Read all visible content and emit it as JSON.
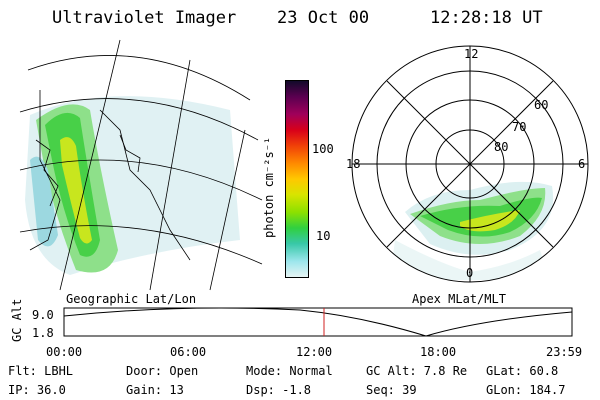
{
  "header": {
    "title": "Ultraviolet Imager",
    "date": "23 Oct 00",
    "time": "12:28:18 UT"
  },
  "colorbar": {
    "unit_label": "photon cm⁻²s⁻¹",
    "ticks": [
      "100",
      "10"
    ],
    "colors": [
      "#120a2a",
      "#5a0050",
      "#a0005a",
      "#d8001a",
      "#f04008",
      "#ff8a00",
      "#ffc800",
      "#d8e400",
      "#8ce000",
      "#30d040",
      "#38c8a8",
      "#9ce6ec",
      "#e6f4f4"
    ]
  },
  "left_panel": {
    "caption": "Geographic Lat/Lon"
  },
  "right_panel": {
    "caption": "Apex MLat/MLT",
    "mlt_labels": {
      "top": "12",
      "left": "18",
      "right": "6",
      "bottom": "0"
    },
    "lat_labels": [
      "80",
      "70",
      "60"
    ]
  },
  "orbit_plot": {
    "axis_label": "GC Alt",
    "y_ticks": [
      "9.0",
      "1.8"
    ],
    "x_ticks": [
      "00:00",
      "06:00",
      "12:00",
      "18:00",
      "23:59"
    ],
    "current_marker_color": "#d02020"
  },
  "footer": {
    "flt": "Flt: LBHL",
    "ip": "IP: 36.0",
    "door": "Door: Open",
    "gain": "Gain: 13",
    "mode": "Mode: Normal",
    "dsp": "Dsp:   -1.8",
    "gcalt": "GC Alt: 7.8 Re",
    "seq": "Seq: 39",
    "glat": "GLat:  60.8",
    "glon": "GLon: 184.7"
  }
}
